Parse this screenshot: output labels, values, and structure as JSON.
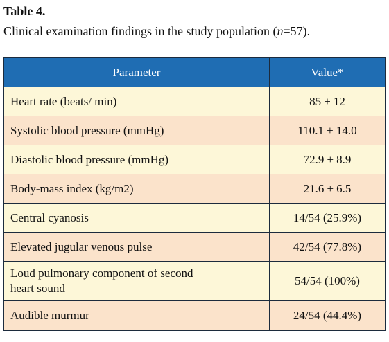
{
  "header": {
    "title": "Table 4.",
    "caption": [
      "Clinical examination findings in the study population (",
      "n",
      "=57)."
    ]
  },
  "table": {
    "columns": [
      "Parameter",
      "Value*"
    ],
    "rows": [
      [
        "Heart rate (beats/ min)",
        "85 ± 12"
      ],
      [
        "Systolic blood pressure (mmHg)",
        "110.1 ± 14.0"
      ],
      [
        "Diastolic blood pressure (mmHg)",
        "72.9 ± 8.9"
      ],
      [
        "Body-mass index (kg/m2)",
        "21.6 ± 6.5"
      ],
      [
        "Central cyanosis",
        "14/54 (25.9%)"
      ],
      [
        "Elevated jugular venous pulse",
        "42/54 (77.8%)"
      ],
      [
        "Loud pulmonary component of second heart sound",
        "54/54 (100%)"
      ],
      [
        "Audible murmur",
        "24/54 (44.4%)"
      ]
    ]
  }
}
